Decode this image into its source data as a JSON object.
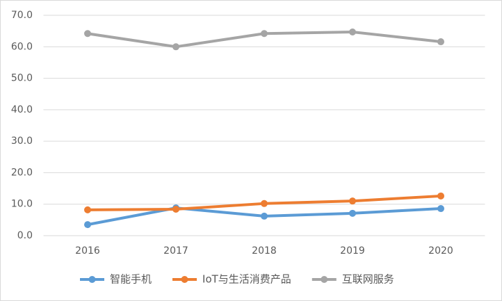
{
  "chart_data": {
    "type": "line",
    "categories": [
      "2016",
      "2017",
      "2018",
      "2019",
      "2020"
    ],
    "series": [
      {
        "name": "智能手机",
        "color": "#5b9bd5",
        "values": [
          3.5,
          8.8,
          6.2,
          7.1,
          8.6
        ]
      },
      {
        "name": "IoT与生活消费产品",
        "color": "#ed7d31",
        "values": [
          8.2,
          8.4,
          10.2,
          11.0,
          12.6
        ]
      },
      {
        "name": "互联网服务",
        "color": "#a5a5a5",
        "values": [
          64.2,
          60.0,
          64.2,
          64.7,
          61.6
        ]
      }
    ],
    "ylim": [
      0,
      70
    ],
    "yticks": [
      {
        "value": 0,
        "label": "0.0"
      },
      {
        "value": 10,
        "label": "10.0"
      },
      {
        "value": 20,
        "label": "20.0"
      },
      {
        "value": 30,
        "label": "30.0"
      },
      {
        "value": 40,
        "label": "40.0"
      },
      {
        "value": 50,
        "label": "50.0"
      },
      {
        "value": 60,
        "label": "60.0"
      },
      {
        "value": 70,
        "label": "70.0"
      }
    ],
    "grid": true,
    "legend": "bottom"
  }
}
